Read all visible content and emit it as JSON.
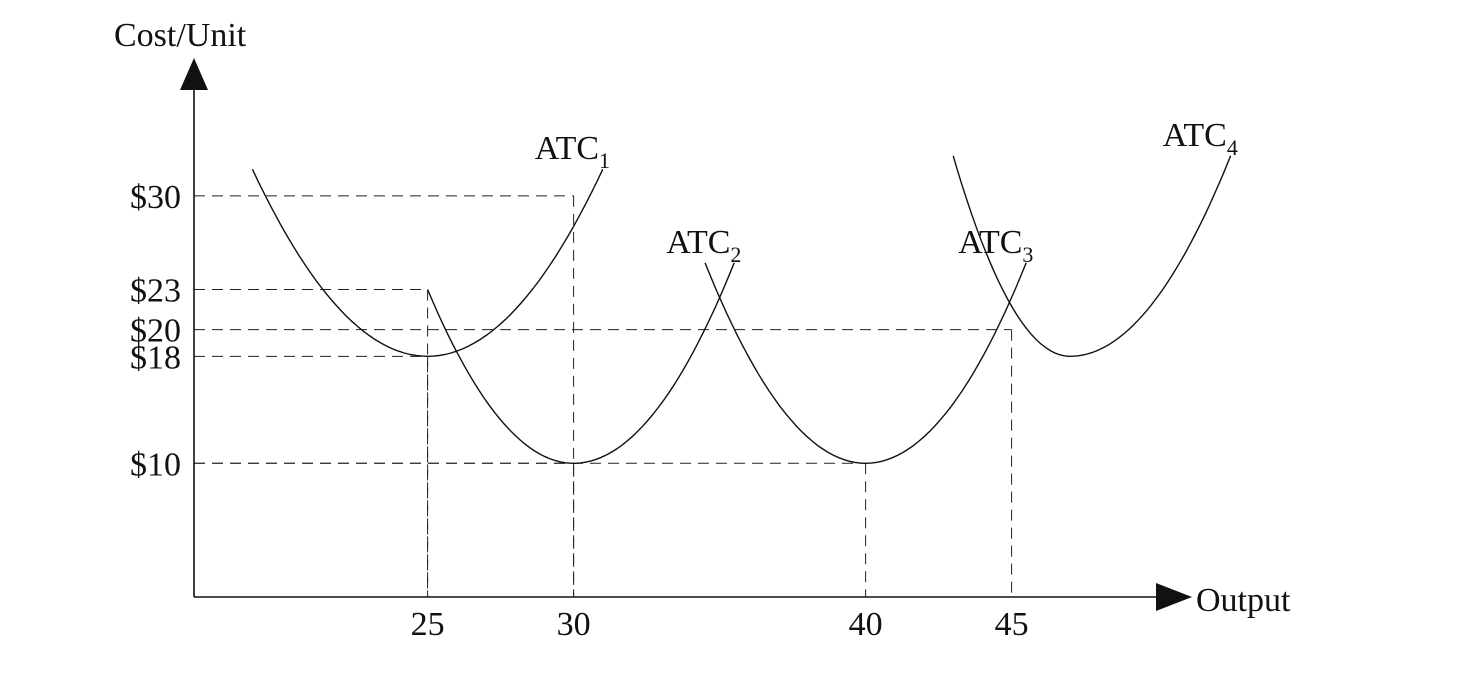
{
  "chart_data": {
    "type": "line",
    "title": "",
    "xlabel": "Output",
    "ylabel": "Cost/Unit",
    "x_ticks": [
      "25",
      "30",
      "40",
      "45"
    ],
    "y_ticks": [
      "$30",
      "$23",
      "$20",
      "$18",
      "$10"
    ],
    "grid": false,
    "legend": "none",
    "series": [
      {
        "name": "ATC",
        "subscript": "1",
        "x": [
          19,
          25,
          31
        ],
        "y": [
          32,
          18,
          32
        ],
        "min": [
          25,
          18
        ]
      },
      {
        "name": "ATC",
        "subscript": "2",
        "x": [
          25,
          30,
          35.5
        ],
        "y": [
          23,
          10,
          25
        ],
        "min": [
          30,
          10
        ]
      },
      {
        "name": "ATC",
        "subscript": "3",
        "x": [
          34.5,
          40,
          45.5
        ],
        "y": [
          25,
          10,
          25
        ],
        "min": [
          40,
          10
        ]
      },
      {
        "name": "ATC",
        "subscript": "4",
        "x": [
          43,
          47,
          52.5
        ],
        "y": [
          33,
          18,
          33
        ],
        "min": [
          47,
          18
        ]
      }
    ],
    "guides": [
      {
        "x": 30,
        "y": 30
      },
      {
        "x": 25,
        "y": 23
      },
      {
        "x": 45,
        "y": 20
      },
      {
        "x": 25,
        "y": 18
      },
      {
        "x": 40,
        "y": 10
      },
      {
        "x": 30,
        "y": 10
      }
    ]
  }
}
